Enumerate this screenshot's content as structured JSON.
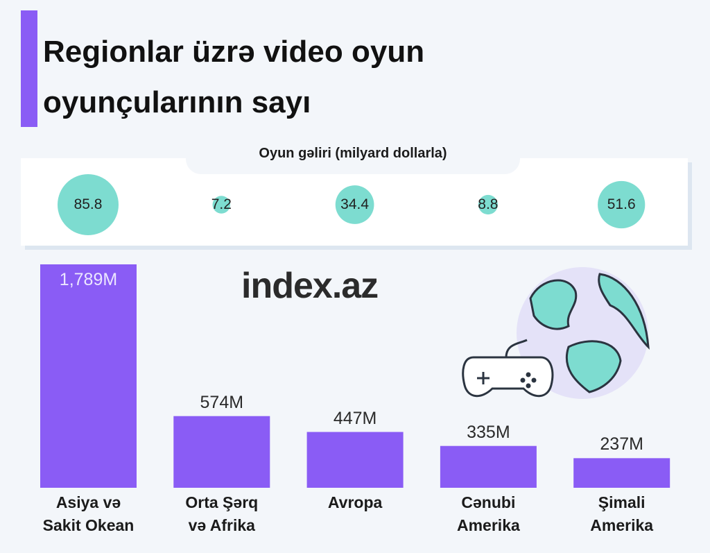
{
  "chart_data": [
    {
      "type": "bar",
      "title": "Regionlar üzrə video oyun oyunçularının sayı",
      "categories": [
        "Asiya və\nSakit Okean",
        "Orta Şərq\nvə Afrika",
        "Avropa",
        "Cənubi\nAmerika",
        "Şimali\nAmerika"
      ],
      "values": [
        1789,
        574,
        447,
        335,
        237
      ],
      "value_labels": [
        "1,789M",
        "574M",
        "447M",
        "335M",
        "237M"
      ],
      "color": "#8a5cf5"
    },
    {
      "type": "bubble",
      "title": "Oyun gəliri (milyard dollarla)",
      "values": [
        85.8,
        7.2,
        34.4,
        8.8,
        51.6
      ],
      "color": "#7ddcd0"
    }
  ],
  "watermark": "index.az"
}
